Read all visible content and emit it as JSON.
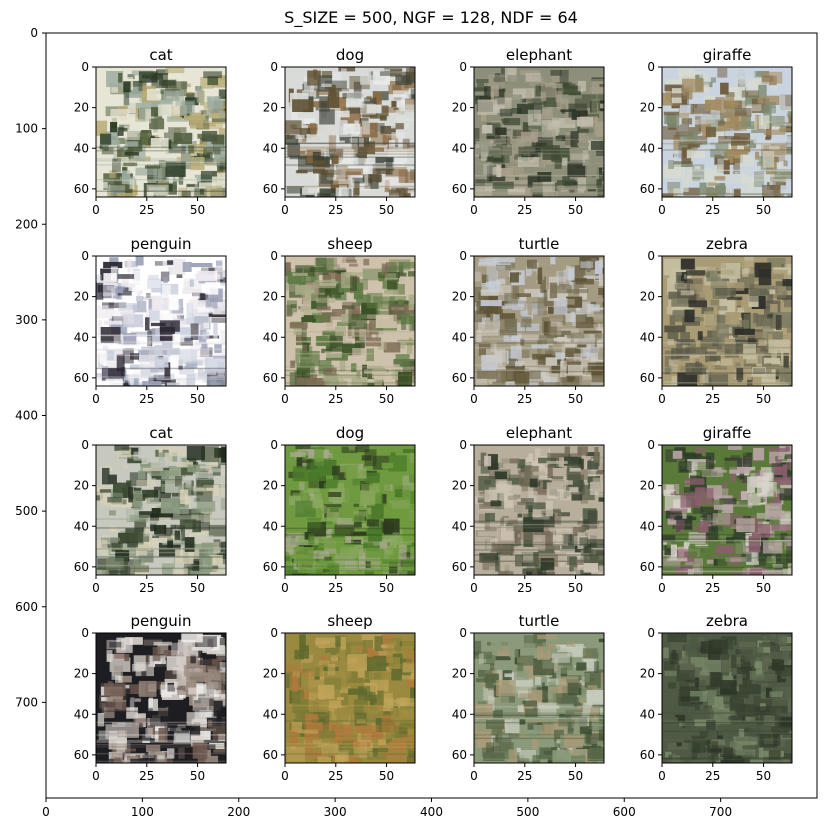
{
  "chart_data": {
    "type": "image-grid",
    "title": "S_SIZE = 500, NGF = 128, NDF = 64",
    "outer_axes": {
      "xlim": [
        0,
        800
      ],
      "ylim": [
        800,
        0
      ],
      "x_ticks": [
        0,
        100,
        200,
        300,
        400,
        500,
        600,
        700
      ],
      "y_ticks": [
        0,
        100,
        200,
        300,
        400,
        500,
        600,
        700
      ]
    },
    "subplot_axes": {
      "xlim": [
        0,
        64
      ],
      "ylim": [
        64,
        0
      ],
      "x_ticks": [
        0,
        25,
        50
      ],
      "y_ticks": [
        0,
        20,
        40,
        60
      ]
    },
    "panels": [
      {
        "label": "cat",
        "palette": [
          "#e7e6d6",
          "#b8aa73",
          "#4d5a3a",
          "#2a3a24",
          "#9cab9e"
        ]
      },
      {
        "label": "dog",
        "palette": [
          "#d9dbd8",
          "#8a6a44",
          "#3c4236",
          "#5f5135",
          "#e8eaea"
        ]
      },
      {
        "label": "elephant",
        "palette": [
          "#8d8f7a",
          "#3f4a34",
          "#a79f8a",
          "#2c3427",
          "#c5c0b0"
        ]
      },
      {
        "label": "giraffe",
        "palette": [
          "#c9d4e0",
          "#a28a60",
          "#6d5a3c",
          "#d8dbd0",
          "#7e8a70"
        ]
      },
      {
        "label": "penguin",
        "palette": [
          "#ffffff",
          "#c8cedb",
          "#2b2733",
          "#9aa0b6",
          "#ede9ee"
        ]
      },
      {
        "label": "sheep",
        "palette": [
          "#cfc2ac",
          "#5f7a45",
          "#3a5026",
          "#a8aa86",
          "#7d6a55"
        ]
      },
      {
        "label": "turtle",
        "palette": [
          "#a49b83",
          "#5e5437",
          "#cfcac0",
          "#7a7258",
          "#c6ccd6"
        ]
      },
      {
        "label": "zebra",
        "palette": [
          "#a99b74",
          "#2e2f2a",
          "#c7c1a3",
          "#7d7b62",
          "#5a5a4a"
        ]
      },
      {
        "label": "cat",
        "palette": [
          "#c7c9bf",
          "#3c4a33",
          "#d8d2b8",
          "#1f2a1c",
          "#8a9a7e"
        ]
      },
      {
        "label": "dog",
        "palette": [
          "#6f9a3f",
          "#4a7a2a",
          "#a7aa8f",
          "#2c3a1e",
          "#8aa860"
        ]
      },
      {
        "label": "elephant",
        "palette": [
          "#b8ae9c",
          "#4a5540",
          "#7a6e5c",
          "#cfc6b6",
          "#2f3a2a"
        ]
      },
      {
        "label": "giraffe",
        "palette": [
          "#5a7a3a",
          "#b8a6a6",
          "#2e3a2a",
          "#8a5e6e",
          "#d9d4cc"
        ]
      },
      {
        "label": "penguin",
        "palette": [
          "#1e1e22",
          "#d8d2cc",
          "#6e5a50",
          "#f0eeea",
          "#9a8a80"
        ]
      },
      {
        "label": "sheep",
        "palette": [
          "#9a8a3f",
          "#7a7a36",
          "#b07a3c",
          "#5e6a2e",
          "#c0a45a"
        ]
      },
      {
        "label": "turtle",
        "palette": [
          "#8a9a7a",
          "#3e4e32",
          "#c7ccbe",
          "#5a6a4a",
          "#a89a78"
        ]
      },
      {
        "label": "zebra",
        "palette": [
          "#4e5a44",
          "#3a4432",
          "#7a8a6a",
          "#5e6650",
          "#2e3628"
        ]
      }
    ]
  }
}
